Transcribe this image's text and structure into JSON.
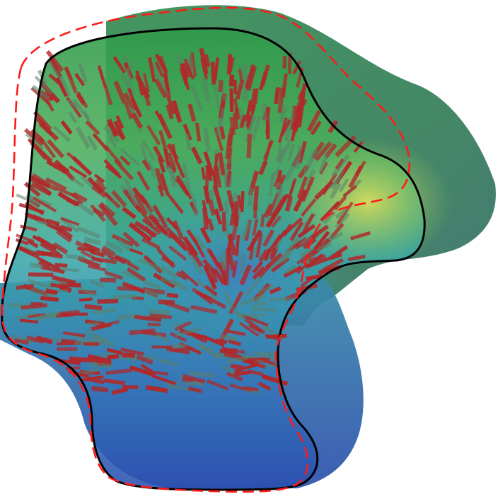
{
  "figure": {
    "background": "#ffffff",
    "surface_colors": {
      "top": "#2f9a4a",
      "upper_mid": "#5fb85a",
      "yellow_patch": "#c9d85a",
      "mid_teal": "#3aa7a8",
      "bottom_blue": "#2a4fb0",
      "back_dark_green": "#2f7a55"
    },
    "outline_color": "#000000",
    "dashed_outline_color": "#ff1a1a",
    "fiber_color": "#b0282a",
    "fiber_shadow_color": "#5b7f6a"
  }
}
